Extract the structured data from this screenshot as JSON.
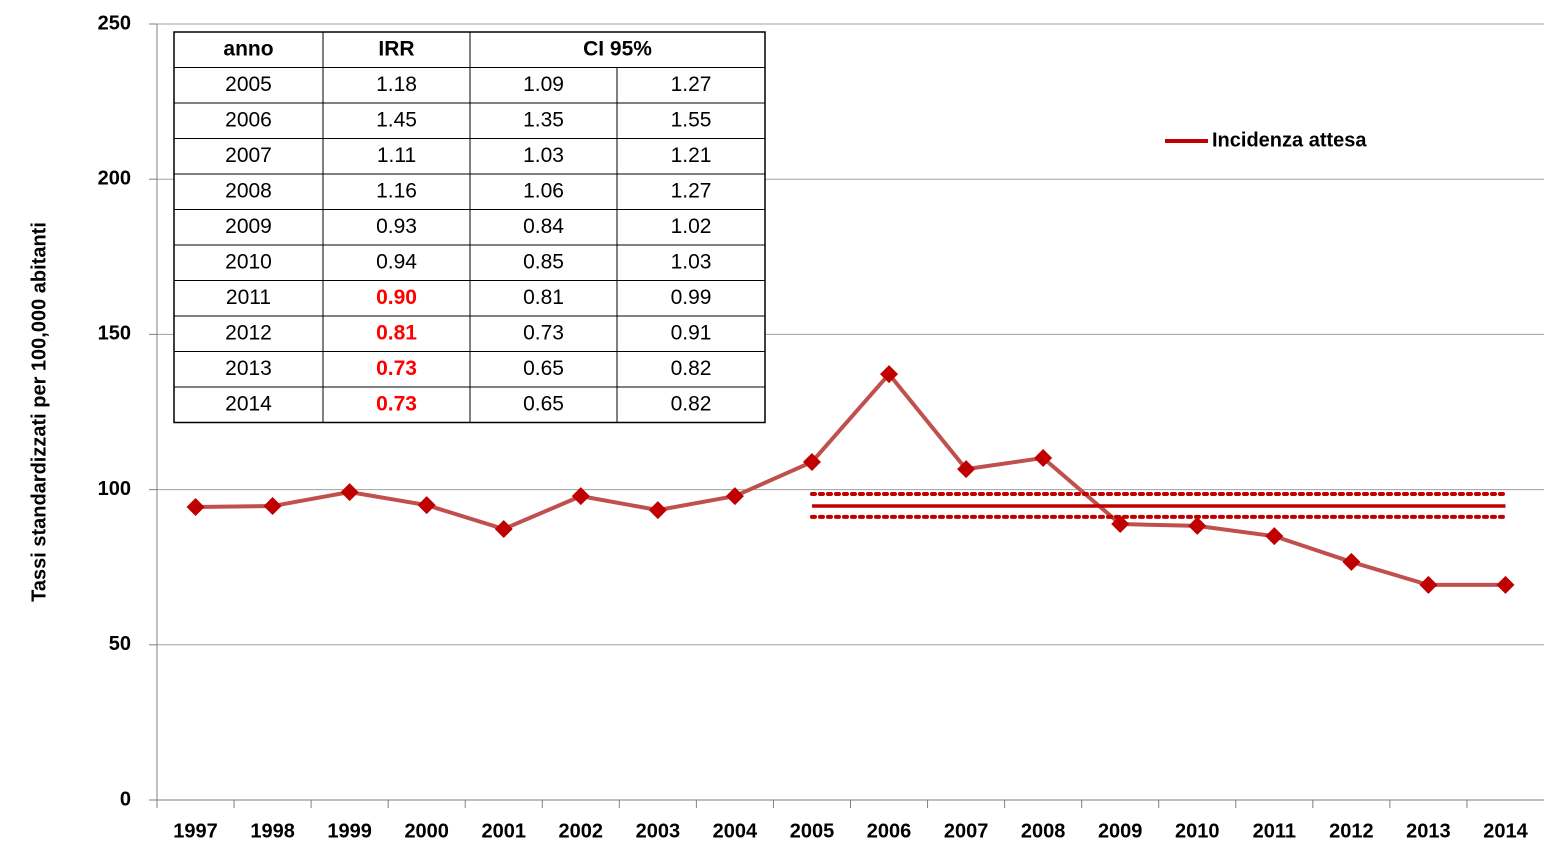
{
  "chart_data": {
    "type": "line",
    "y_label": "Tassi standardizzati per 100,000 abitanti",
    "categories": [
      "1997",
      "1998",
      "1999",
      "2000",
      "2001",
      "2002",
      "2003",
      "2004",
      "2005",
      "2006",
      "2007",
      "2008",
      "2009",
      "2010",
      "2011",
      "2012",
      "2013",
      "2014"
    ],
    "series": [
      {
        "color": "#c0504d",
        "marker_color": "#c00000",
        "values": [
          94.4,
          94.7,
          99.2,
          95,
          87.3,
          97.9,
          93.4,
          97.9,
          108.9,
          137.2,
          106.6,
          110.2,
          88.9,
          88.3,
          85,
          76.7,
          69.3,
          69.3
        ]
      },
      {
        "name": "Incidenza attesa",
        "color": "#c00000",
        "values": [
          null,
          null,
          null,
          null,
          null,
          null,
          null,
          null,
          94.7,
          94.7,
          94.7,
          94.7,
          94.7,
          94.7,
          94.7,
          94.7,
          94.7,
          94.7
        ]
      },
      {
        "color": "#c00000",
        "dotted": true,
        "values": [
          null,
          null,
          null,
          null,
          null,
          null,
          null,
          null,
          98.6,
          98.6,
          98.6,
          98.6,
          98.6,
          98.6,
          98.6,
          98.6,
          98.6,
          98.6
        ]
      },
      {
        "color": "#c00000",
        "dotted": true,
        "values": [
          null,
          null,
          null,
          null,
          null,
          null,
          null,
          null,
          91.2,
          91.2,
          91.2,
          91.2,
          91.2,
          91.2,
          91.2,
          91.2,
          91.2,
          91.2
        ]
      }
    ],
    "ylim": [
      0,
      250
    ],
    "yticks": [
      0,
      50,
      100,
      150,
      200,
      250
    ],
    "grid": true,
    "legend": "upper right",
    "table": {
      "header": [
        "anno",
        "IRR",
        "CI 95%"
      ],
      "rows": [
        [
          "2005",
          "1.18",
          "1.09",
          "1.27"
        ],
        [
          "2006",
          "1.45",
          "1.35",
          "1.55"
        ],
        [
          "2007",
          "1.11",
          "1.03",
          "1.21"
        ],
        [
          "2008",
          "1.16",
          "1.06",
          "1.27"
        ],
        [
          "2009",
          "0.93",
          "0.84",
          "1.02"
        ],
        [
          "2010",
          "0.94",
          "0.85",
          "1.03"
        ],
        [
          "2011",
          "0.90",
          "0.81",
          "0.99"
        ],
        [
          "2012",
          "0.81",
          "0.73",
          "0.91"
        ],
        [
          "2013",
          "0.73",
          "0.65",
          "0.82"
        ],
        [
          "2014",
          "0.73",
          "0.65",
          "0.82"
        ]
      ],
      "highlighted_rows": [
        6,
        7,
        8,
        9
      ],
      "highlight_color": "#ff0000"
    }
  }
}
